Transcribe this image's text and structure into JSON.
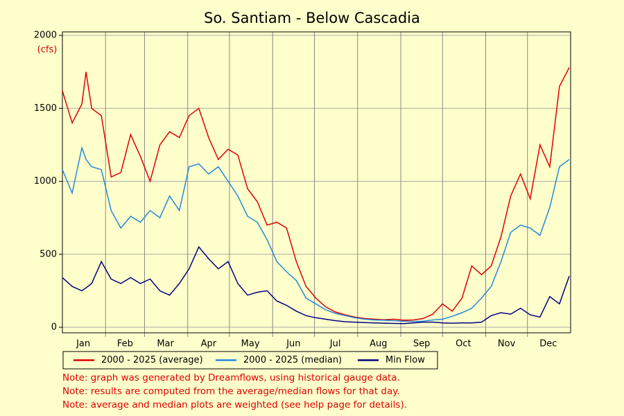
{
  "chart_data": {
    "type": "line",
    "title": "So. Santiam - Below Cascadia",
    "y_unit_label": "(cfs)",
    "x": [
      1,
      8,
      15,
      18,
      22,
      29,
      36,
      43,
      50,
      57,
      64,
      71,
      78,
      85,
      92,
      99,
      106,
      113,
      120,
      127,
      134,
      141,
      148,
      155,
      162,
      169,
      176,
      183,
      190,
      197,
      204,
      211,
      218,
      225,
      232,
      239,
      246,
      253,
      260,
      267,
      274,
      281,
      288,
      295,
      302,
      309,
      316,
      323,
      330,
      337,
      344,
      351,
      358,
      365
    ],
    "series": [
      {
        "name": "2000 - 2025 (average)",
        "color": "#dd0000",
        "values": [
          1620,
          1400,
          1530,
          1750,
          1500,
          1450,
          1030,
          1060,
          1320,
          1170,
          1000,
          1250,
          1340,
          1300,
          1450,
          1500,
          1300,
          1150,
          1220,
          1180,
          950,
          860,
          700,
          720,
          680,
          450,
          280,
          200,
          140,
          105,
          85,
          70,
          60,
          55,
          52,
          55,
          48,
          50,
          60,
          90,
          160,
          110,
          200,
          420,
          360,
          420,
          620,
          900,
          1050,
          880,
          1250,
          1100,
          1650,
          1780
        ]
      },
      {
        "name": "2000 - 2025 (median)",
        "color": "#2288dd",
        "values": [
          1080,
          920,
          1230,
          1150,
          1100,
          1080,
          800,
          680,
          760,
          720,
          800,
          750,
          900,
          800,
          1100,
          1120,
          1050,
          1100,
          1000,
          900,
          760,
          720,
          600,
          450,
          380,
          320,
          200,
          160,
          120,
          95,
          80,
          65,
          55,
          50,
          48,
          45,
          42,
          40,
          42,
          50,
          55,
          75,
          100,
          130,
          200,
          280,
          450,
          650,
          700,
          680,
          630,
          820,
          1100,
          1150
        ]
      },
      {
        "name": "Min Flow",
        "color": "#000080",
        "values": [
          340,
          280,
          250,
          270,
          300,
          450,
          330,
          300,
          340,
          300,
          330,
          250,
          220,
          300,
          400,
          550,
          470,
          400,
          450,
          300,
          220,
          240,
          250,
          180,
          150,
          110,
          80,
          65,
          55,
          45,
          38,
          35,
          32,
          30,
          28,
          26,
          25,
          30,
          35,
          35,
          30,
          28,
          30,
          30,
          35,
          80,
          100,
          90,
          130,
          85,
          70,
          210,
          160,
          350
        ]
      }
    ],
    "xlim": [
      1,
      366
    ],
    "xticks": [
      {
        "value": 16,
        "label": "Jan"
      },
      {
        "value": 46,
        "label": "Feb"
      },
      {
        "value": 75,
        "label": "Mar"
      },
      {
        "value": 106,
        "label": "Apr"
      },
      {
        "value": 136,
        "label": "May"
      },
      {
        "value": 167,
        "label": "Jun"
      },
      {
        "value": 197,
        "label": "Jul"
      },
      {
        "value": 228,
        "label": "Aug"
      },
      {
        "value": 259,
        "label": "Sep"
      },
      {
        "value": 289,
        "label": "Oct"
      },
      {
        "value": 320,
        "label": "Nov"
      },
      {
        "value": 350,
        "label": "Dec"
      }
    ],
    "x_month_boundaries": [
      32,
      60,
      91,
      121,
      152,
      182,
      213,
      244,
      274,
      305,
      335
    ],
    "ylim": [
      -38,
      2024
    ],
    "yticks": [
      0,
      500,
      1000,
      1500,
      2000
    ],
    "grid": true,
    "notes": [
      "Note: graph was generated by Dreamflows, using historical gauge data.",
      "Note: results are computed from the average/median flows for that day.",
      "Note: average and median plots are weighted (see help page for details)."
    ]
  }
}
